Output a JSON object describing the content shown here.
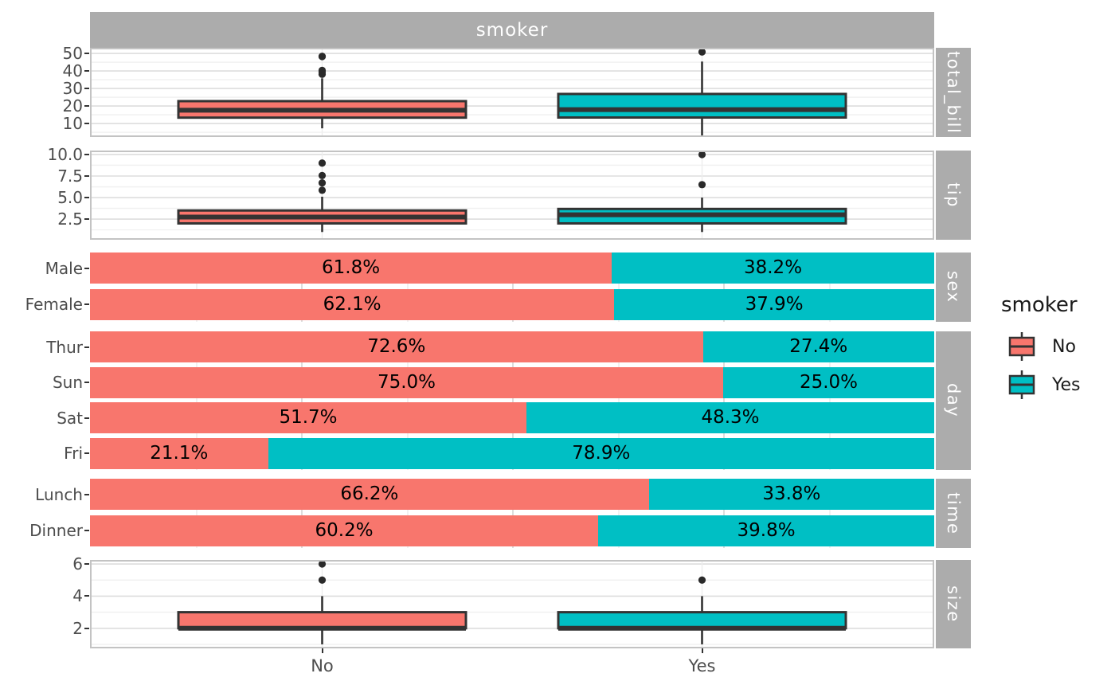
{
  "facet_col_label": "smoker",
  "x_axis": {
    "categories": [
      "No",
      "Yes"
    ]
  },
  "legend": {
    "title": "smoker",
    "entries": [
      {
        "label": "No",
        "color": "#F8766D"
      },
      {
        "label": "Yes",
        "color": "#00BFC4"
      }
    ]
  },
  "colors": {
    "no": "#F8766D",
    "yes": "#00BFC4",
    "strip_bg": "#ACACAC",
    "strip_text": "#FFFFFF",
    "box_stroke": "#333333",
    "outlier": "#2a2a2a",
    "grid_major": "#DDDDDD",
    "grid_minor": "#F1F1F1",
    "panel_border": "#C3C3C3",
    "axis_text": "#4D4D4D"
  },
  "chart_data": [
    {
      "type": "boxplot",
      "facet": "total_bill",
      "ylim": [
        2.3,
        53.2
      ],
      "yticks": [
        10,
        20,
        30,
        40,
        50
      ],
      "groups": [
        {
          "category": "No",
          "color": "#F8766D",
          "whisker_low": 7.25,
          "q1": 13.35,
          "median": 17.59,
          "q3": 22.76,
          "whisker_high": 35.8,
          "outliers": [
            38.1,
            39.4,
            40.3,
            48.2,
            48.3
          ]
        },
        {
          "category": "Yes",
          "color": "#00BFC4",
          "whisker_low": 3.07,
          "q1": 13.42,
          "median": 17.92,
          "q3": 26.86,
          "whisker_high": 45.35,
          "outliers": [
            50.8
          ]
        }
      ]
    },
    {
      "type": "boxplot",
      "facet": "tip",
      "ylim": [
        0.1,
        10.46
      ],
      "yticks": [
        2.5,
        5.0,
        7.5,
        10.0
      ],
      "ytick_labels": [
        "2.5",
        "5.0",
        "7.5",
        "10.0"
      ],
      "groups": [
        {
          "category": "No",
          "color": "#F8766D",
          "whisker_low": 1.0,
          "q1": 2.0,
          "median": 2.74,
          "q3": 3.5,
          "whisker_high": 5.1,
          "outliers": [
            5.85,
            6.7,
            7.56,
            9.0
          ]
        },
        {
          "category": "Yes",
          "color": "#00BFC4",
          "whisker_low": 1.0,
          "q1": 2.0,
          "median": 3.0,
          "q3": 3.68,
          "whisker_high": 5.0,
          "outliers": [
            6.5,
            10.0
          ]
        }
      ]
    },
    {
      "type": "stacked_bar_percent",
      "facet": "sex",
      "rows": [
        {
          "category": "Male",
          "no_pct": 61.8,
          "yes_pct": 38.2,
          "no_label": "61.8%",
          "yes_label": "38.2%"
        },
        {
          "category": "Female",
          "no_pct": 62.1,
          "yes_pct": 37.9,
          "no_label": "62.1%",
          "yes_label": "37.9%"
        }
      ]
    },
    {
      "type": "stacked_bar_percent",
      "facet": "day",
      "rows": [
        {
          "category": "Thur",
          "no_pct": 72.6,
          "yes_pct": 27.4,
          "no_label": "72.6%",
          "yes_label": "27.4%"
        },
        {
          "category": "Sun",
          "no_pct": 75.0,
          "yes_pct": 25.0,
          "no_label": "75.0%",
          "yes_label": "25.0%"
        },
        {
          "category": "Sat",
          "no_pct": 51.7,
          "yes_pct": 48.3,
          "no_label": "51.7%",
          "yes_label": "48.3%"
        },
        {
          "category": "Fri",
          "no_pct": 21.1,
          "yes_pct": 78.9,
          "no_label": "21.1%",
          "yes_label": "78.9%"
        }
      ]
    },
    {
      "type": "stacked_bar_percent",
      "facet": "time",
      "rows": [
        {
          "category": "Lunch",
          "no_pct": 66.2,
          "yes_pct": 33.8,
          "no_label": "66.2%",
          "yes_label": "33.8%"
        },
        {
          "category": "Dinner",
          "no_pct": 60.2,
          "yes_pct": 39.8,
          "no_label": "60.2%",
          "yes_label": "39.8%"
        }
      ]
    },
    {
      "type": "boxplot",
      "facet": "size",
      "ylim": [
        0.75,
        6.25
      ],
      "yticks": [
        2,
        4,
        6
      ],
      "groups": [
        {
          "category": "No",
          "color": "#F8766D",
          "whisker_low": 1,
          "q1": 2,
          "median": 2,
          "q3": 3,
          "whisker_high": 4,
          "outliers": [
            5,
            6
          ]
        },
        {
          "category": "Yes",
          "color": "#00BFC4",
          "whisker_low": 1,
          "q1": 2,
          "median": 2,
          "q3": 3,
          "whisker_high": 4,
          "outliers": [
            5
          ]
        }
      ]
    }
  ]
}
